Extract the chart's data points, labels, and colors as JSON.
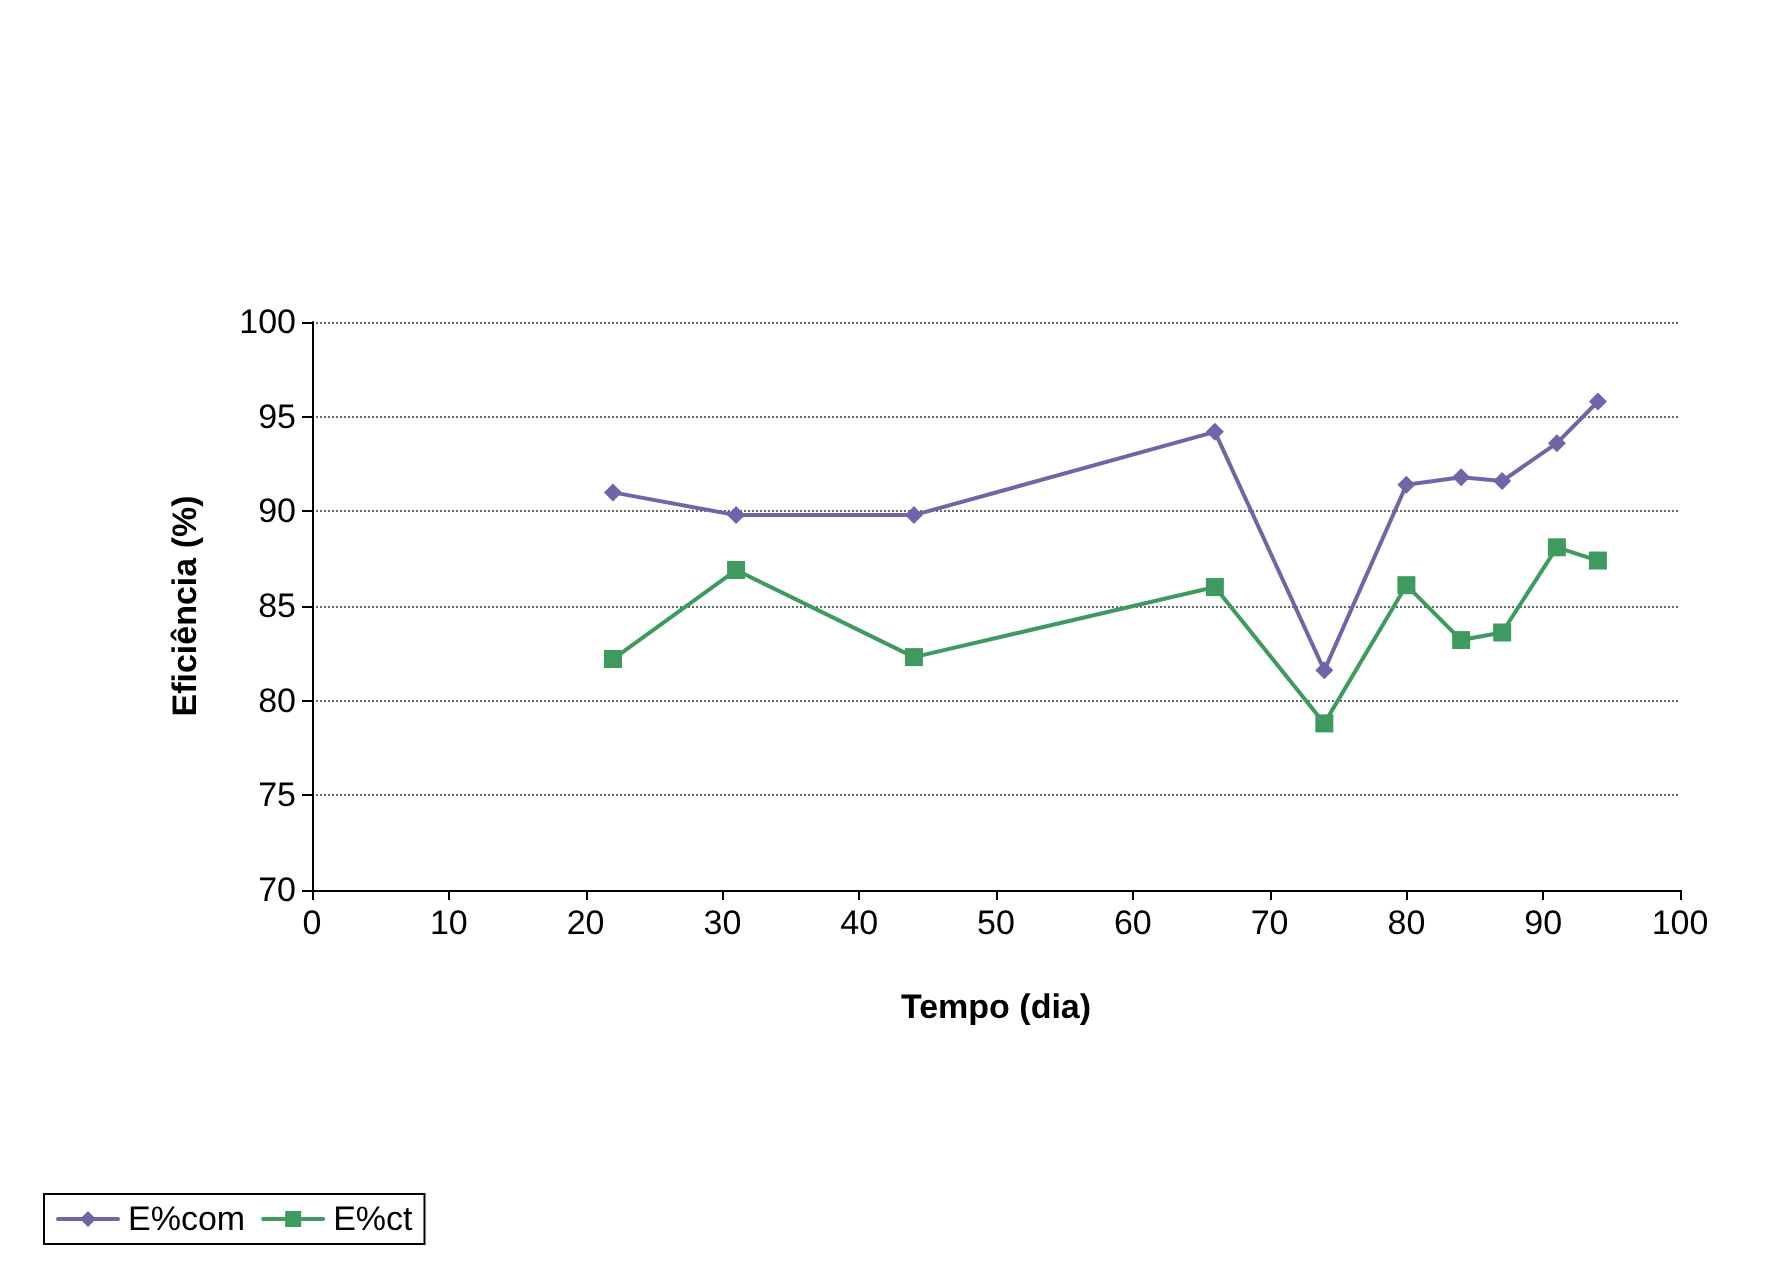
{
  "chart_data": {
    "type": "line",
    "xlabel": "Tempo (dia)",
    "ylabel": "Eficiência (%)",
    "xlim": [
      0,
      100
    ],
    "xticks": [
      0,
      10,
      20,
      30,
      40,
      50,
      60,
      70,
      80,
      90,
      100
    ],
    "ylim": [
      70,
      100
    ],
    "yticks": [
      70,
      75,
      80,
      85,
      90,
      95,
      100
    ],
    "grid": "y",
    "legend": "bottom left",
    "line_style": "solid",
    "series": [
      {
        "name": "E%com",
        "color": "#6f66a8",
        "marker": "diamond",
        "x": [
          22,
          31,
          44,
          66,
          74,
          80,
          84,
          87,
          91,
          94
        ],
        "values": [
          91,
          89.8,
          89.8,
          94.2,
          81.6,
          91.4,
          91.8,
          91.6,
          93.6,
          95.8
        ]
      },
      {
        "name": "E%ct",
        "color": "#3f9a5f",
        "marker": "square",
        "x": [
          22,
          31,
          44,
          66,
          74,
          80,
          84,
          87,
          91,
          94
        ],
        "values": [
          82.2,
          86.9,
          82.3,
          86,
          78.8,
          86.1,
          83.2,
          83.6,
          88.1,
          87.4
        ]
      }
    ]
  }
}
